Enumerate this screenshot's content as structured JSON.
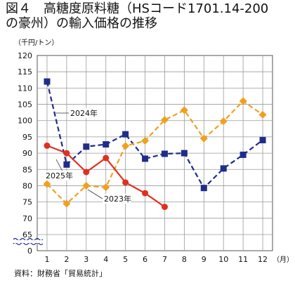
{
  "figure": {
    "title_line1": "図４　高糖度原料糖（HSコード1701.14-200",
    "title_line2": "の豪州）の輸入価格の推移",
    "source": "資料：財務省「貿易統計」"
  },
  "chart_data": {
    "type": "line",
    "title": "図４　高糖度原料糖（HSコード1701.14-200の豪州）の輸入価格の推移",
    "yunit": "（千円/トン）",
    "xunit": "（月）",
    "x": [
      1,
      2,
      3,
      4,
      5,
      6,
      7,
      8,
      9,
      10,
      11,
      12
    ],
    "ylim": [
      0,
      120
    ],
    "axis_break": [
      0,
      65
    ],
    "yticks": [
      0,
      65,
      70,
      75,
      80,
      85,
      90,
      95,
      100,
      105,
      110,
      115,
      120
    ],
    "grid": true,
    "legend": "inline labels",
    "series": [
      {
        "name": "2024年",
        "color": "#1f2d8a",
        "style": "dashed",
        "marker": "square",
        "values": [
          112,
          86.5,
          92,
          92.7,
          95.8,
          88.3,
          89.8,
          90,
          79.3,
          85.3,
          89.5,
          94
        ]
      },
      {
        "name": "2023年",
        "color": "#f0a020",
        "style": "dashed",
        "marker": "diamond",
        "values": [
          80.5,
          74.5,
          80,
          79.5,
          92.2,
          93.8,
          100.2,
          103.2,
          94.5,
          99.8,
          106,
          101.8
        ]
      },
      {
        "name": "2025年",
        "color": "#e03020",
        "style": "solid",
        "marker": "circle",
        "values": [
          92.3,
          90,
          84.2,
          88.5,
          81,
          77.7,
          73.5,
          null,
          null,
          null,
          null,
          null
        ]
      }
    ]
  }
}
